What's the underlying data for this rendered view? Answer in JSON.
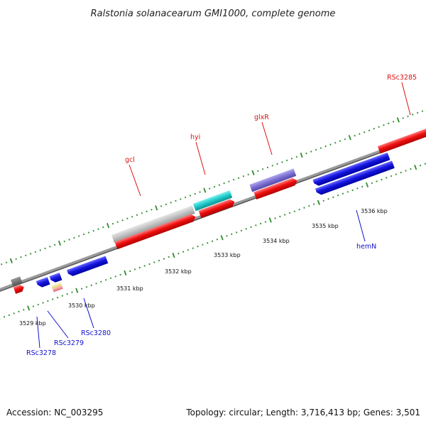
{
  "title": "Ralstonia solanacearum GMI1000, complete genome",
  "accession": "Accession: NC_003295",
  "summary": "Topology: circular; Length: 3,716,413 bp; Genes: 3,501",
  "colors": {
    "backbone": "#8c8c8c",
    "tick": "#2e8b2e",
    "red": "#ee1111",
    "blue": "#1515e0",
    "gray_feature": "#bdbdbd",
    "cyan": "#1ec8c8",
    "purple": "#7b6fd0",
    "label_red": "#dd1111",
    "label_blue": "#1111cc"
  },
  "tick_labels": [
    "3529 kbp",
    "3530 kbp",
    "3531 kbp",
    "3532 kbp",
    "3533 kbp",
    "3534 kbp",
    "3535 kbp",
    "3536 kbp"
  ],
  "gene_labels": [
    {
      "text": "gcl",
      "color": "label_red"
    },
    {
      "text": "hyi",
      "color": "label_red"
    },
    {
      "text": "glxR",
      "color": "label_red"
    },
    {
      "text": "RSc3285",
      "color": "label_red"
    },
    {
      "text": "hemN",
      "color": "label_blue"
    },
    {
      "text": "RSc3280",
      "color": "label_blue"
    },
    {
      "text": "RSc3279",
      "color": "label_blue"
    },
    {
      "text": "RSc3278",
      "color": "label_blue"
    }
  ]
}
